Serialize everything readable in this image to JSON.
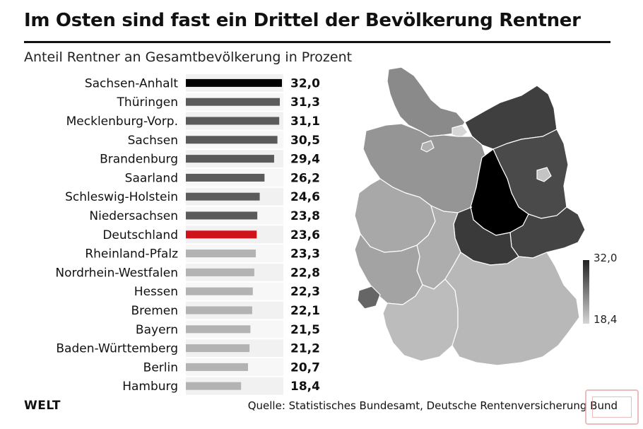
{
  "header": {
    "title": "Im Osten sind fast ein Drittel der Bevölkerung Rentner",
    "subtitle": "Anteil Rentner an Gesamtbevölkerung in Prozent"
  },
  "chart_data": {
    "type": "bar",
    "orientation": "horizontal",
    "title": "Im Osten sind fast ein Drittel der Bevölkerung Rentner",
    "subtitle": "Anteil Rentner an Gesamtbevölkerung in Prozent",
    "categories": [
      "Sachsen-Anhalt",
      "Thüringen",
      "Mecklenburg-Vorp.",
      "Sachsen",
      "Brandenburg",
      "Saarland",
      "Schleswig-Holstein",
      "Niedersachsen",
      "Deutschland",
      "Rheinland-Pfalz",
      "Nordrhein-Westfalen",
      "Hessen",
      "Bremen",
      "Bayern",
      "Baden-Württemberg",
      "Berlin",
      "Hamburg"
    ],
    "values": [
      32.0,
      31.3,
      31.1,
      30.5,
      29.4,
      26.2,
      24.6,
      23.8,
      23.6,
      23.3,
      22.8,
      22.3,
      22.1,
      21.5,
      21.2,
      20.7,
      18.4
    ],
    "value_labels": [
      "32,0",
      "31,3",
      "31,1",
      "30,5",
      "29,4",
      "26,2",
      "24,6",
      "23,8",
      "23,6",
      "23,3",
      "22,8",
      "22,3",
      "22,1",
      "21,5",
      "21,2",
      "20,7",
      "18,4"
    ],
    "bar_colors": [
      "#000000",
      "#5b5b5b",
      "#5b5b5b",
      "#5b5b5b",
      "#5b5b5b",
      "#5b5b5b",
      "#5b5b5b",
      "#5b5b5b",
      "#d0121b",
      "#b3b3b3",
      "#b3b3b3",
      "#b3b3b3",
      "#b3b3b3",
      "#b3b3b3",
      "#b3b3b3",
      "#b3b3b3",
      "#b3b3b3"
    ],
    "xlim": [
      0,
      32.0
    ],
    "grid": false,
    "legend": "none",
    "color_scale": {
      "max_label": "32,0",
      "min_label": "18,4",
      "max_color": "#222222",
      "min_color": "#d6d6d6"
    }
  },
  "footer": {
    "logo": "WELT",
    "source": "Quelle: Statistisches Bundesamt, Deutsche Rentenversicherung Bund"
  },
  "map": {
    "region_colors": {
      "sachsen-anhalt": "#000000",
      "thueringen": "#3a3a3a",
      "mecklenburg-vorpommern": "#3f3f3f",
      "sachsen": "#444444",
      "brandenburg": "#4a4a4a",
      "saarland": "#666666",
      "schleswig-holstein": "#8a8a8a",
      "niedersachsen": "#959595",
      "rheinland-pfalz": "#a3a3a3",
      "nordrhein-westfalen": "#a8a8a8",
      "hessen": "#adadad",
      "bremen": "#b0b0b0",
      "bayern": "#b8b8b8",
      "baden-wuerttemberg": "#bcbcbc",
      "berlin": "#c4c4c4",
      "hamburg": "#d6d6d6"
    }
  }
}
